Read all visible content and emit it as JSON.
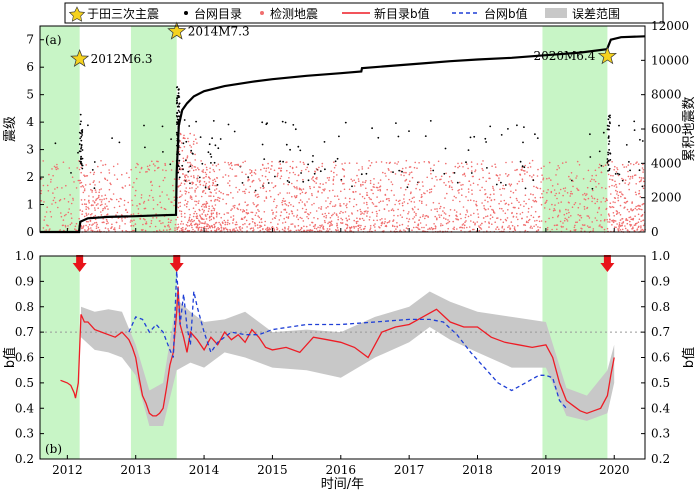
{
  "chart_data": [
    {
      "type": "scatter",
      "panel_label": "(a)",
      "ylabel_left": "震级",
      "ylabel_right": "累积地震数",
      "xlim": [
        2011.6,
        2020.45
      ],
      "ylim": [
        0,
        7.5
      ],
      "ylim_right": [
        0,
        12000
      ],
      "yticks": [
        0,
        1,
        2,
        3,
        4,
        5,
        6,
        7
      ],
      "yticks_right": [
        0,
        2000,
        4000,
        6000,
        8000,
        10000,
        12000
      ],
      "error_ranges": [
        [
          2011.6,
          2012.18
        ],
        [
          2012.93,
          2013.6
        ],
        [
          2018.95,
          2019.9
        ]
      ],
      "mainshocks": [
        {
          "x": 2012.18,
          "y": 6.3,
          "label": "2012M6.3",
          "label_side": "right"
        },
        {
          "x": 2013.6,
          "y": 7.3,
          "label": "2014M7.3",
          "label_side": "right"
        },
        {
          "x": 2019.9,
          "y": 6.4,
          "label": "2020M6.4",
          "label_side": "left"
        }
      ],
      "cumulative_series": {
        "name": "累积地震数",
        "x": [
          2011.6,
          2012.17,
          2012.19,
          2012.3,
          2012.6,
          2013.0,
          2013.4,
          2013.59,
          2013.6,
          2013.63,
          2013.68,
          2013.75,
          2013.85,
          2014.0,
          2014.3,
          2014.7,
          2015.0,
          2015.5,
          2016.0,
          2016.3,
          2016.31,
          2016.8,
          2017.2,
          2017.6,
          2018.0,
          2018.5,
          2019.0,
          2019.5,
          2019.89,
          2019.9,
          2019.95,
          2020.1,
          2020.45
        ],
        "y": [
          0,
          0,
          600,
          800,
          880,
          920,
          980,
          1000,
          3500,
          6200,
          7100,
          7500,
          7900,
          8200,
          8500,
          8750,
          8900,
          9100,
          9250,
          9350,
          9550,
          9700,
          9820,
          9950,
          10050,
          10150,
          10300,
          10450,
          10650,
          10700,
          11200,
          11350,
          11400
        ]
      },
      "scatter_note": "台网目录 (black dots) and 检测地震 (red dots) shown as dense cloud of magnitudes 0–4.5"
    },
    {
      "type": "line",
      "panel_label": "(b)",
      "ylabel": "b值",
      "xlabel": "时间/年",
      "xlim": [
        2011.6,
        2020.45
      ],
      "ylim": [
        0.2,
        1.0
      ],
      "yticks": [
        0.2,
        0.3,
        0.4,
        0.5,
        0.6,
        0.7,
        0.8,
        0.9,
        1.0
      ],
      "xticks": [
        2012,
        2013,
        2014,
        2015,
        2016,
        2017,
        2018,
        2019,
        2020
      ],
      "reference_line_y": 0.7,
      "error_ranges": [
        [
          2011.6,
          2012.18
        ],
        [
          2012.93,
          2013.6
        ],
        [
          2018.95,
          2019.9
        ]
      ],
      "arrows_x": [
        2012.18,
        2013.6,
        2019.9
      ],
      "series": [
        {
          "name": "新目录b值",
          "color": "#ee1c25",
          "style": "solid",
          "x": [
            2011.9,
            2012.0,
            2012.05,
            2012.1,
            2012.12,
            2012.16,
            2012.2,
            2012.25,
            2012.3,
            2012.4,
            2012.5,
            2012.6,
            2012.7,
            2012.8,
            2012.9,
            2012.95,
            2013.0,
            2013.05,
            2013.1,
            2013.15,
            2013.2,
            2013.25,
            2013.3,
            2013.35,
            2013.4,
            2013.45,
            2013.5,
            2013.55,
            2013.6,
            2013.62,
            2013.65,
            2013.7,
            2013.75,
            2013.8,
            2013.9,
            2014.0,
            2014.1,
            2014.2,
            2014.3,
            2014.4,
            2014.5,
            2014.6,
            2014.7,
            2014.8,
            2014.9,
            2015.0,
            2015.2,
            2015.4,
            2015.6,
            2015.8,
            2016.0,
            2016.2,
            2016.4,
            2016.6,
            2016.8,
            2017.0,
            2017.2,
            2017.4,
            2017.6,
            2017.8,
            2018.0,
            2018.2,
            2018.4,
            2018.6,
            2018.8,
            2019.0,
            2019.1,
            2019.2,
            2019.3,
            2019.4,
            2019.5,
            2019.6,
            2019.7,
            2019.8,
            2019.9,
            2019.95,
            2020.0
          ],
          "y": [
            0.51,
            0.5,
            0.49,
            0.46,
            0.44,
            0.5,
            0.77,
            0.74,
            0.74,
            0.71,
            0.7,
            0.69,
            0.68,
            0.7,
            0.67,
            0.64,
            0.6,
            0.52,
            0.45,
            0.42,
            0.38,
            0.37,
            0.37,
            0.38,
            0.4,
            0.48,
            0.57,
            0.62,
            0.78,
            0.88,
            0.73,
            0.68,
            0.62,
            0.7,
            0.67,
            0.63,
            0.68,
            0.65,
            0.7,
            0.67,
            0.69,
            0.66,
            0.71,
            0.68,
            0.64,
            0.63,
            0.64,
            0.62,
            0.68,
            0.67,
            0.66,
            0.64,
            0.6,
            0.7,
            0.72,
            0.73,
            0.76,
            0.79,
            0.74,
            0.72,
            0.72,
            0.68,
            0.66,
            0.65,
            0.64,
            0.65,
            0.6,
            0.5,
            0.43,
            0.41,
            0.39,
            0.38,
            0.39,
            0.4,
            0.45,
            0.53,
            0.6
          ]
        },
        {
          "name": "台网b值",
          "color": "#1f3fd6",
          "style": "dashed",
          "x": [
            2012.9,
            2013.0,
            2013.1,
            2013.2,
            2013.3,
            2013.4,
            2013.5,
            2013.55,
            2013.6,
            2013.65,
            2013.7,
            2013.75,
            2013.8,
            2013.85,
            2013.9,
            2014.0,
            2014.1,
            2014.2,
            2014.4,
            2014.6,
            2014.8,
            2015.0,
            2015.5,
            2016.0,
            2016.5,
            2017.0,
            2017.3,
            2017.5,
            2017.7,
            2017.9,
            2018.1,
            2018.3,
            2018.5,
            2018.7,
            2018.9,
            2019.0,
            2019.1,
            2019.2,
            2019.3
          ],
          "y": [
            0.7,
            0.76,
            0.75,
            0.7,
            0.73,
            0.7,
            0.63,
            0.6,
            0.94,
            0.73,
            0.85,
            0.72,
            0.65,
            0.86,
            0.8,
            0.7,
            0.62,
            0.66,
            0.7,
            0.69,
            0.69,
            0.71,
            0.73,
            0.73,
            0.74,
            0.75,
            0.75,
            0.74,
            0.69,
            0.62,
            0.56,
            0.5,
            0.47,
            0.5,
            0.53,
            0.53,
            0.52,
            0.43,
            0.4
          ]
        }
      ],
      "error_band": {
        "name": "误差范围",
        "x": [
          2012.2,
          2012.4,
          2012.6,
          2012.8,
          2013.0,
          2013.2,
          2013.4,
          2013.6,
          2013.8,
          2014.0,
          2014.3,
          2014.6,
          2015.0,
          2015.5,
          2016.0,
          2016.5,
          2017.0,
          2017.3,
          2017.6,
          2018.0,
          2018.5,
          2019.0,
          2019.3,
          2019.6,
          2019.9,
          2020.0
        ],
        "upper": [
          0.8,
          0.78,
          0.79,
          0.78,
          0.65,
          0.47,
          0.5,
          0.83,
          0.78,
          0.74,
          0.75,
          0.78,
          0.7,
          0.71,
          0.7,
          0.76,
          0.8,
          0.86,
          0.82,
          0.78,
          0.76,
          0.74,
          0.48,
          0.45,
          0.55,
          0.65
        ],
        "lower": [
          0.68,
          0.63,
          0.62,
          0.6,
          0.53,
          0.33,
          0.33,
          0.55,
          0.58,
          0.56,
          0.62,
          0.6,
          0.56,
          0.55,
          0.52,
          0.6,
          0.66,
          0.72,
          0.67,
          0.62,
          0.56,
          0.56,
          0.37,
          0.35,
          0.38,
          0.5
        ]
      }
    }
  ],
  "legend": {
    "mainshock": "于田三次主震",
    "network_catalog": "台网目录",
    "detected": "检测地震",
    "new_b": "新目录b值",
    "network_b": "台网b值",
    "error_range": "误差范围"
  },
  "colors": {
    "green": "#c8f5c6",
    "red_line": "#ee1c25",
    "blue_line": "#1f3fd6",
    "gray_band": "#c8c8c8",
    "red_dots": "#f06e6e",
    "star": "#f5d21e",
    "arrow": "#e8141a"
  }
}
